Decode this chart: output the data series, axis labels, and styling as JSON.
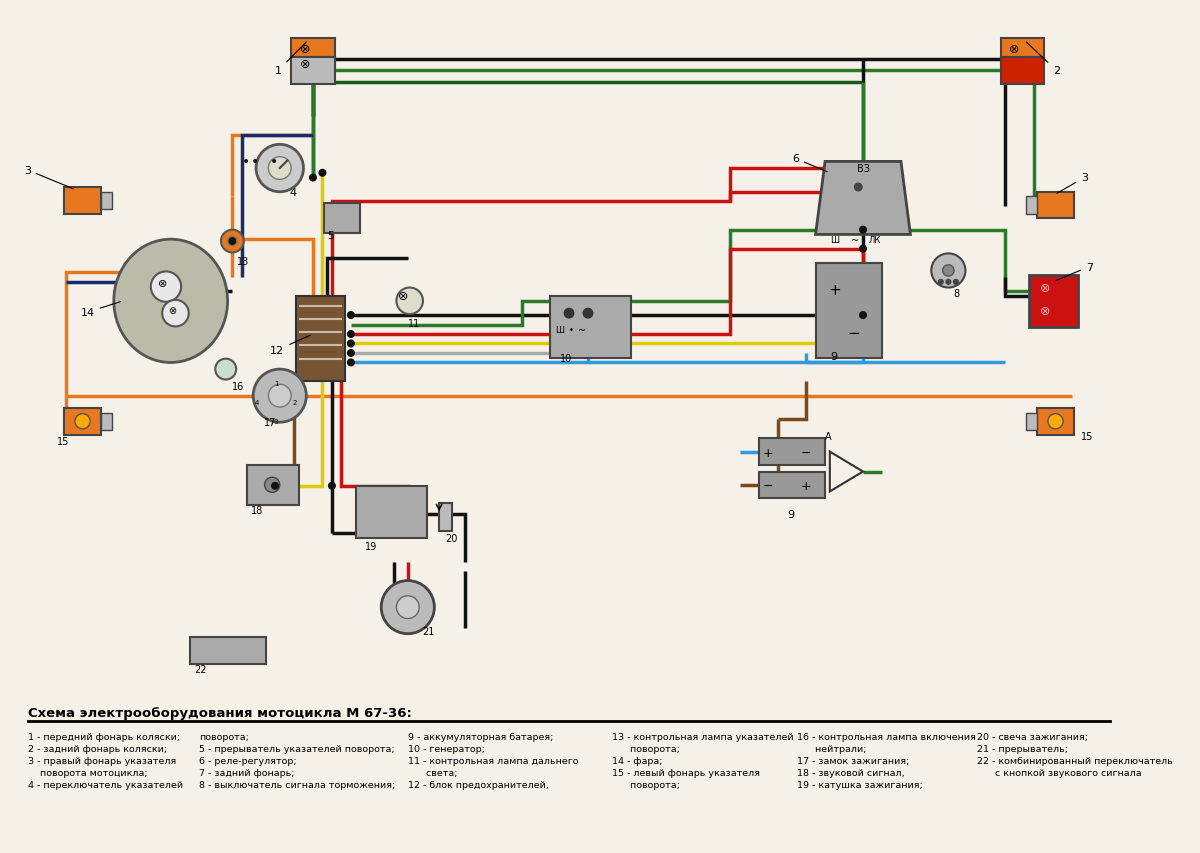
{
  "title": "Схема электрооборудования мотоцикла М 67-36:",
  "bg_color": "#f5f0e8",
  "wire_colors": {
    "orange": "#E87820",
    "blue": "#2244AA",
    "dark_blue": "#1A2B6B",
    "green": "#2A7A2A",
    "red": "#CC1111",
    "yellow": "#DDCC00",
    "black": "#111111",
    "gray": "#AAAAAA",
    "lightblue": "#3399DD",
    "brown": "#7B4A1A",
    "dark_green": "#1A5A1A"
  },
  "legend_col1": [
    "1 - передний фонарь коляски;",
    "2 - задний фонарь коляски;",
    "3 - правый фонарь указателя",
    "    поворота мотоцикла;",
    "4 - переключатель указателей"
  ],
  "legend_col2": [
    "поворота;",
    "5 - прерыватель указателей поворота;",
    "6 - реле-регулятор;",
    "7 - задний фонарь;",
    "8 - выключатель сигнала торможения;"
  ],
  "legend_col3": [
    "9 - аккумуляторная батарея;",
    "10 - генератор;",
    "11 - контрольная лампа дальнего",
    "      света;",
    "12 - блок предохранителей,"
  ],
  "legend_col4": [
    "13 - контрольная лампа указателей",
    "      поворота;",
    "14 - фара;",
    "15 - левый фонарь указателя",
    "      поворота;"
  ],
  "legend_col5": [
    "16 - контрольная лампа включения",
    "      нейтрали;",
    "17 - замок зажигания;",
    "18 - звуковой сигнал,",
    "19 - катушка зажигания;"
  ],
  "legend_col6": [
    "20 - свеча зажигания;",
    "21 - прерыватель;",
    "22 - комбинированный переключатель",
    "      с кнопкой звукового сигнала"
  ]
}
